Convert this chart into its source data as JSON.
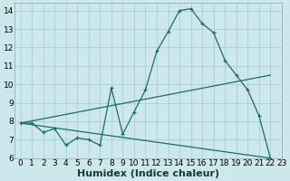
{
  "xlabel": "Humidex (Indice chaleur)",
  "bg_color": "#cce8ec",
  "grid_color": "#aacdd4",
  "line_color": "#1a6b6b",
  "xlim": [
    -0.5,
    23
  ],
  "ylim": [
    6,
    14.4
  ],
  "xticks": [
    0,
    1,
    2,
    3,
    4,
    5,
    6,
    7,
    8,
    9,
    10,
    11,
    12,
    13,
    14,
    15,
    16,
    17,
    18,
    19,
    20,
    21,
    22,
    23
  ],
  "yticks": [
    6,
    7,
    8,
    9,
    10,
    11,
    12,
    13,
    14
  ],
  "line1_x": [
    0,
    1,
    2,
    3,
    4,
    5,
    6,
    7,
    8,
    9,
    10,
    11,
    12,
    13,
    14,
    15,
    16,
    17,
    18,
    19,
    20,
    21,
    22
  ],
  "line1_y": [
    7.9,
    7.9,
    7.4,
    7.6,
    6.7,
    7.1,
    7.0,
    6.7,
    9.8,
    7.3,
    8.5,
    9.7,
    11.8,
    12.85,
    14.0,
    14.1,
    13.3,
    12.8,
    11.3,
    10.5,
    9.7,
    8.3,
    6.0
  ],
  "line2_x": [
    0,
    22
  ],
  "line2_y": [
    7.9,
    10.5
  ],
  "line3_x": [
    0,
    22
  ],
  "line3_y": [
    7.9,
    6.0
  ],
  "xlabel_fontsize": 8,
  "tick_fontsize": 6.5
}
